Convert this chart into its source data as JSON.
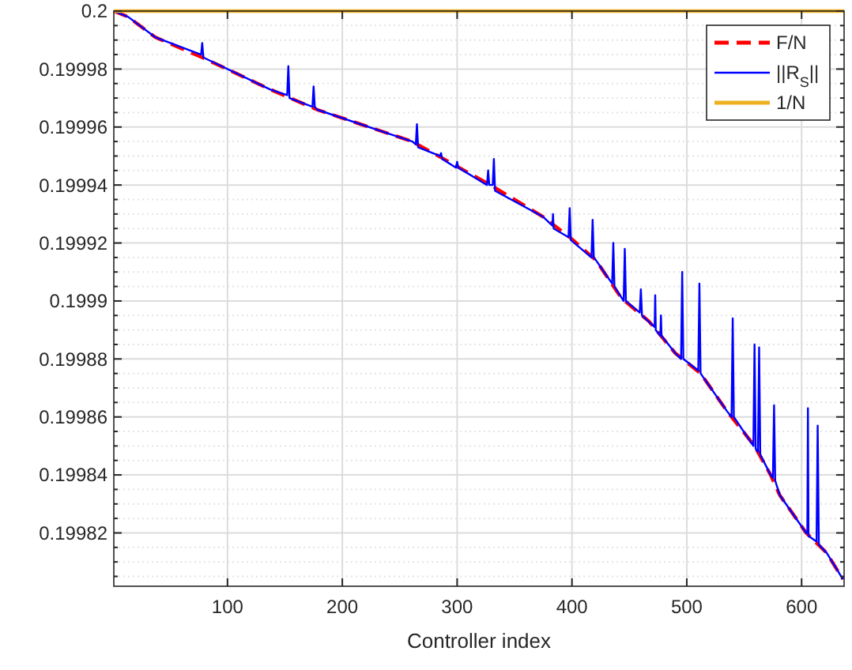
{
  "chart_data": {
    "type": "line",
    "xlabel": "Controller index",
    "xlim": [
      1,
      637
    ],
    "xticks": [
      100,
      200,
      300,
      400,
      500,
      600
    ],
    "ylim": [
      0.1998016,
      0.2
    ],
    "yticks": [
      {
        "value": 0.199805,
        "label": null
      },
      {
        "value": 0.19981,
        "label": null
      },
      {
        "value": 0.199815,
        "label": null
      },
      0.19982,
      {
        "value": 0.199825,
        "label": null
      },
      {
        "value": 0.19983,
        "label": null
      },
      {
        "value": 0.199835,
        "label": null
      },
      0.19984,
      {
        "value": 0.199845,
        "label": null
      },
      {
        "value": 0.19985,
        "label": null
      },
      {
        "value": 0.199855,
        "label": null
      },
      0.19986,
      {
        "value": 0.199865,
        "label": null
      },
      {
        "value": 0.19987,
        "label": null
      },
      {
        "value": 0.199875,
        "label": null
      },
      0.19988,
      {
        "value": 0.199885,
        "label": null
      },
      {
        "value": 0.19989,
        "label": null
      },
      {
        "value": 0.199895,
        "label": null
      },
      0.1999,
      {
        "value": 0.199905,
        "label": null
      },
      {
        "value": 0.19991,
        "label": null
      },
      {
        "value": 0.199915,
        "label": null
      },
      0.19992,
      {
        "value": 0.199925,
        "label": null
      },
      {
        "value": 0.19993,
        "label": null
      },
      {
        "value": 0.199935,
        "label": null
      },
      0.19994,
      {
        "value": 0.199945,
        "label": null
      },
      {
        "value": 0.19995,
        "label": null
      },
      {
        "value": 0.199955,
        "label": null
      },
      0.19996,
      {
        "value": 0.199965,
        "label": null
      },
      {
        "value": 0.19997,
        "label": null
      },
      {
        "value": 0.199975,
        "label": null
      },
      0.19998,
      {
        "value": 0.199985,
        "label": null
      },
      {
        "value": 0.19999,
        "label": null
      },
      {
        "value": 0.199995,
        "label": null
      },
      0.2
    ],
    "grid": true,
    "legend": "top right",
    "series": [
      {
        "name": "F/N",
        "color": "#ff0000",
        "line_style": "dashed",
        "x": [
          1,
          13.5,
          37,
          78,
          137,
          178,
          261,
          329,
          375,
          398,
          421,
          443,
          467,
          490,
          512,
          535,
          559,
          573,
          581,
          604,
          622,
          636
        ],
        "values": [
          0.2,
          0.199998,
          0.199991,
          0.199984,
          0.199973,
          0.199966,
          0.199955,
          0.19994,
          0.199929,
          0.199922,
          0.199914,
          0.199901,
          0.199893,
          0.199882,
          0.199875,
          0.199862,
          0.19985,
          0.19984,
          0.199833,
          0.19982,
          0.199813,
          0.199804
        ]
      },
      {
        "name": "||R$_{S}$||",
        "color": "#0000ff",
        "line_style": "solid",
        "x": [
          1,
          13.5,
          37,
          77,
          78,
          79,
          137,
          152,
          153,
          154,
          174,
          175,
          176,
          178,
          261,
          264,
          265,
          266,
          285,
          286,
          287,
          299,
          300,
          301,
          326,
          327,
          328,
          331,
          332,
          333,
          375,
          383,
          383.5,
          384,
          397,
          398,
          399,
          417,
          418,
          419,
          421,
          435,
          436,
          437,
          445,
          446,
          447,
          459,
          460,
          461,
          472,
          472.5,
          473,
          477,
          477.5,
          478,
          490,
          495,
          496,
          497,
          510,
          511,
          512,
          535,
          539,
          540,
          541,
          558,
          559,
          560,
          562,
          563,
          564,
          573,
          575,
          576,
          577,
          581,
          604,
          605,
          605.5,
          606,
          613,
          614,
          615,
          622,
          636
        ],
        "values": [
          0.2,
          0.199998,
          0.199991,
          0.199985,
          0.199989,
          0.199984,
          0.199973,
          0.199971,
          0.199981,
          0.19997,
          0.199967,
          0.199974,
          0.199967,
          0.199966,
          0.199955,
          0.199954,
          0.199961,
          0.199953,
          0.19995,
          0.199951,
          0.199949,
          0.199946,
          0.199948,
          0.199946,
          0.19994,
          0.199945,
          0.19994,
          0.19994,
          0.199949,
          0.199938,
          0.199929,
          0.199926,
          0.19993,
          0.199925,
          0.199922,
          0.199932,
          0.199921,
          0.199915,
          0.199928,
          0.199915,
          0.199914,
          0.199906,
          0.19992,
          0.199905,
          0.1999,
          0.199918,
          0.1999,
          0.199896,
          0.199904,
          0.199895,
          0.199891,
          0.199902,
          0.19989,
          0.199888,
          0.199895,
          0.199888,
          0.199882,
          0.19988,
          0.19991,
          0.19988,
          0.199876,
          0.199906,
          0.199875,
          0.199862,
          0.19986,
          0.199894,
          0.19986,
          0.19985,
          0.199885,
          0.199849,
          0.199848,
          0.199884,
          0.199847,
          0.19984,
          0.199839,
          0.199864,
          0.199838,
          0.199833,
          0.19982,
          0.19982,
          0.199863,
          0.199819,
          0.199817,
          0.199857,
          0.199816,
          0.199813,
          0.199804
        ]
      },
      {
        "name": "1/N",
        "color": "#edb120",
        "line_style": "solid",
        "x": [
          1,
          637
        ],
        "values": [
          0.2,
          0.2
        ]
      }
    ]
  }
}
